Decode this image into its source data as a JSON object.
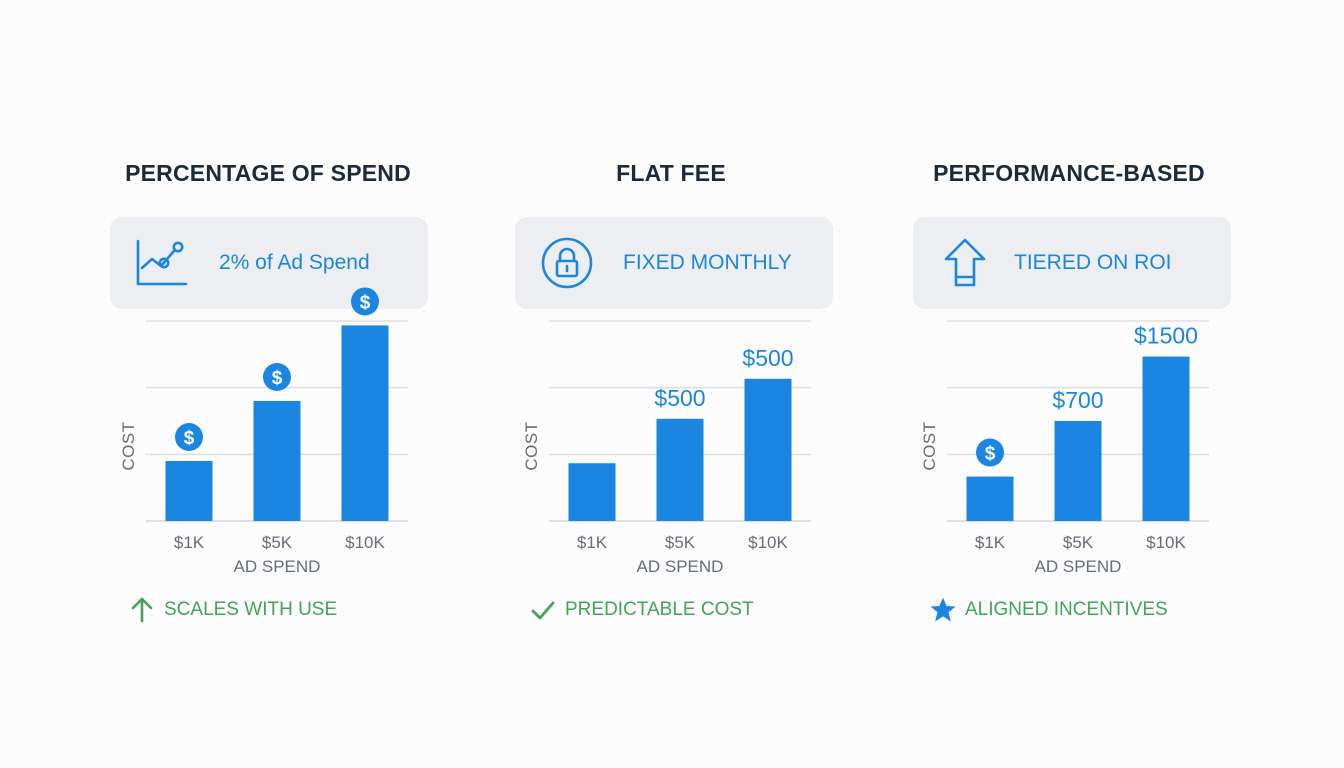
{
  "colors": {
    "bar": "#1a86e2",
    "accent_blue": "#1c86de",
    "title": "#1c2a3a",
    "tick": "#666d75",
    "gridline": "#dcdfe3",
    "footer_green": "#43a357"
  },
  "panels": [
    {
      "title": "PERCENTAGE OF SPEND",
      "pill_icon": "line-chart-icon",
      "pill_label": "2% of Ad Spend",
      "footer_icon": "arrow-up-icon",
      "footer_label": "SCALES WITH USE",
      "chart_data": {
        "type": "bar",
        "categories": [
          "$1K",
          "$5K",
          "$10K"
        ],
        "values": [
          2.7,
          5.4,
          8.8
        ],
        "bar_labels": [
          "$",
          "$",
          "$"
        ],
        "bar_label_style": "dollar-coin",
        "xlabel": "AD SPEND",
        "ylabel": "COST",
        "ylim": [
          0,
          9
        ]
      }
    },
    {
      "title": "FLAT FEE",
      "pill_icon": "lock-icon",
      "pill_label": "FIXED MONTHLY",
      "footer_icon": "checkmark-icon",
      "footer_label": "PREDICTABLE COST",
      "chart_data": {
        "type": "bar",
        "categories": [
          "$1K",
          "$5K",
          "$10K"
        ],
        "values": [
          2.6,
          4.6,
          6.4
        ],
        "bar_labels": [
          "",
          "$500",
          "$500"
        ],
        "bar_label_style": "text",
        "xlabel": "AD SPEND",
        "ylabel": "COST",
        "ylim": [
          0,
          9
        ]
      }
    },
    {
      "title": "PERFORMANCE-BASED",
      "pill_icon": "arrow-up-outline-icon",
      "pill_label": "TIERED ON ROI",
      "footer_icon": "star-icon",
      "footer_label": "ALIGNED INCENTIVES",
      "chart_data": {
        "type": "bar",
        "categories": [
          "$1K",
          "$5K",
          "$10K"
        ],
        "values": [
          2.0,
          4.5,
          7.4
        ],
        "bar_labels": [
          "$",
          "$700",
          "$1500"
        ],
        "bar_label_style": "mixed",
        "xlabel": "AD SPEND",
        "ylabel": "COST",
        "ylim": [
          0,
          9
        ]
      }
    }
  ]
}
